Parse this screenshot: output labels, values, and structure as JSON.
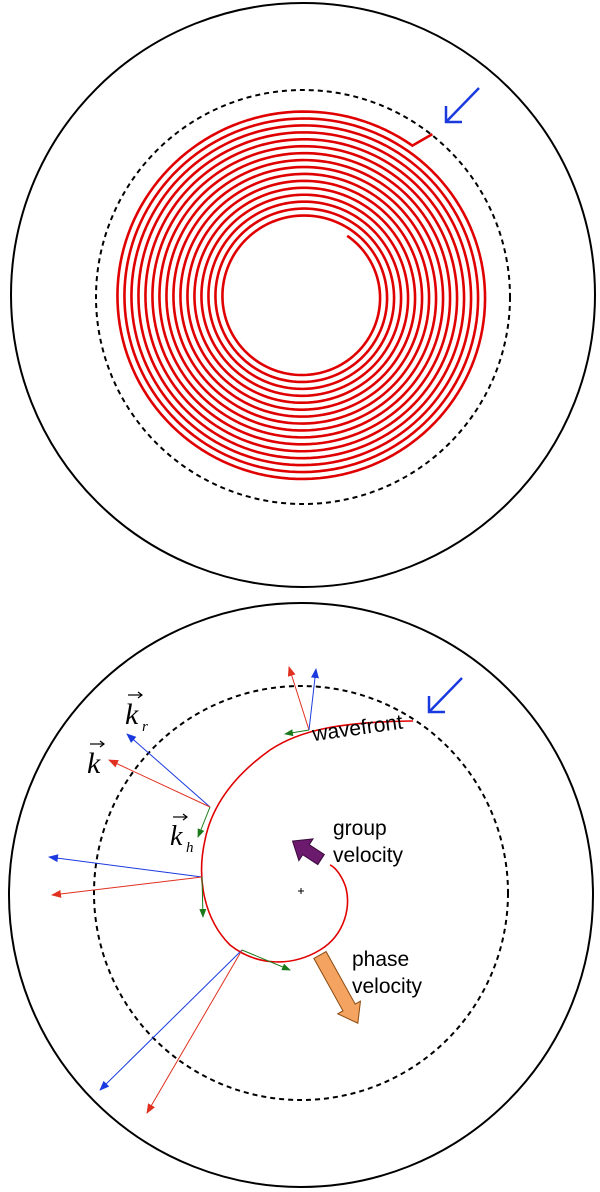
{
  "colors": {
    "spiral": "#e00000",
    "blue_arrow": "#1a3adf",
    "k_vector": "#e03020",
    "kr_vector": "#1a3adf",
    "kh_vector": "#1a7a1a",
    "group_velocity": "#6b1a6e",
    "phase_velocity": "#f4a460",
    "circle": "#000000"
  },
  "top_panel": {
    "description_icon": "inward-pointing-arrow-icon"
  },
  "bottom_panel": {
    "labels": {
      "k": "k",
      "kr_base": "k",
      "kr_sub": "r",
      "kh_base": "k",
      "kh_sub": "h",
      "wavefront": "wavefront",
      "group_velocity_line1": "group",
      "group_velocity_line2": "velocity",
      "phase_velocity_line1": "phase",
      "phase_velocity_line2": "velocity"
    }
  }
}
